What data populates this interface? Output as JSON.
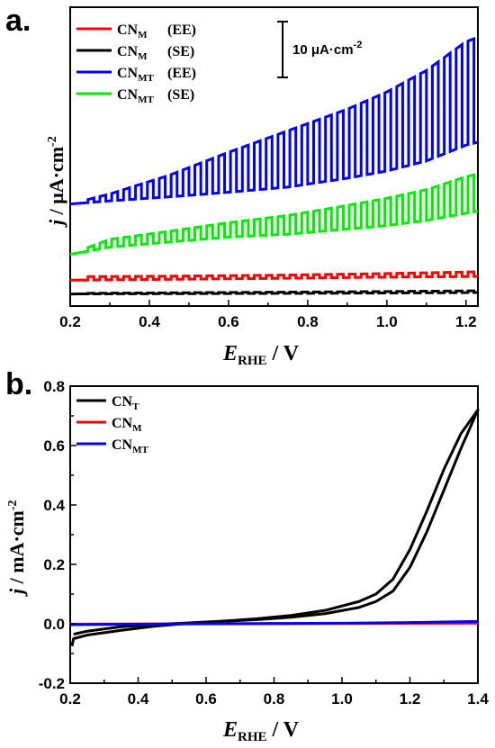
{
  "chart_data": [
    {
      "panel": "a.",
      "type": "line",
      "xlabel": "E",
      "xlabel_sub": "RHE",
      "xlabel_unit": " / V",
      "ylabel_j": "j",
      "ylabel_unit": " / μA·cm",
      "ylabel_exp": "-2",
      "x_ticks": [
        "0.2",
        "0.4",
        "0.6",
        "0.8",
        "1.0",
        "1.2"
      ],
      "xlim": [
        0.2,
        1.23
      ],
      "y_ticks_shown": false,
      "scale_bar": {
        "label": "10 μA·cm",
        "exp": "-2",
        "value": 10
      },
      "chopped_light": {
        "first_on": 0.245,
        "period": 0.03,
        "on_fraction": 0.5
      },
      "series": [
        {
          "name": "CN",
          "sub": "M",
          "tag": "(EE)",
          "color": "#ff0000",
          "x": [
            0.2,
            0.45,
            0.7,
            0.95,
            1.23
          ],
          "dark": [
            -3.0,
            -2.7,
            -2.4,
            -2.0,
            -1.7
          ],
          "photo": [
            -1.8,
            -1.6,
            -1.3,
            -0.8,
            -0.1
          ]
        },
        {
          "name": "CN",
          "sub": "M",
          "tag": "(SE)",
          "color": "#000000",
          "x": [
            0.2,
            0.45,
            0.7,
            0.95,
            1.23
          ],
          "dark": [
            -7.8,
            -7.7,
            -7.6,
            -7.5,
            -7.3
          ],
          "photo": [
            -7.6,
            -7.4,
            -7.2,
            -7.0,
            -6.7
          ]
        },
        {
          "name": "CN",
          "sub": "MT",
          "tag": "(EE)",
          "color": "#0000ff",
          "x": [
            0.2,
            0.3,
            0.45,
            0.6,
            0.75,
            0.9,
            1.0,
            1.1,
            1.2,
            1.23
          ],
          "dark": [
            23.5,
            24.6,
            26.0,
            27.6,
            29.4,
            32.5,
            35.0,
            38.5,
            44.0,
            45.0
          ],
          "photo": [
            23.5,
            27.0,
            33.5,
            41.5,
            49.0,
            56.5,
            62.5,
            70.0,
            80.0,
            81.5
          ]
        },
        {
          "name": "CN",
          "sub": "MT",
          "tag": "(SE)",
          "color": "#00ee00",
          "x": [
            0.2,
            0.3,
            0.45,
            0.6,
            0.75,
            0.9,
            1.0,
            1.1,
            1.2,
            1.23
          ],
          "dark": [
            6.0,
            8.5,
            10.3,
            12.0,
            13.0,
            14.8,
            16.0,
            17.8,
            20.3,
            21.0
          ],
          "photo": [
            6.0,
            11.2,
            14.0,
            17.0,
            19.5,
            23.0,
            25.5,
            28.5,
            33.0,
            34.0
          ]
        }
      ],
      "ylim_internal": [
        -12,
        92
      ]
    },
    {
      "panel": "b.",
      "type": "line",
      "xlabel": "E",
      "xlabel_sub": "RHE",
      "xlabel_unit": " / V",
      "ylabel_j": "j",
      "ylabel_unit": " / mA·cm",
      "ylabel_exp": "-2",
      "xlim": [
        0.2,
        1.4
      ],
      "ylim": [
        -0.2,
        0.8
      ],
      "x_ticks": [
        "0.2",
        "0.4",
        "0.6",
        "0.8",
        "1.0",
        "1.2",
        "1.4"
      ],
      "y_ticks": [
        "-0.2",
        "0.0",
        "0.2",
        "0.4",
        "0.6",
        "0.8"
      ],
      "series": [
        {
          "name": "CN",
          "sub": "T",
          "color": "#000000",
          "forward_x": [
            0.205,
            0.21,
            0.25,
            0.35,
            0.45,
            0.55,
            0.65,
            0.75,
            0.85,
            0.95,
            1.05,
            1.1,
            1.15,
            1.2,
            1.25,
            1.3,
            1.35,
            1.4
          ],
          "forward_y": [
            -0.075,
            -0.05,
            -0.038,
            -0.022,
            -0.008,
            0.002,
            0.008,
            0.014,
            0.022,
            0.034,
            0.055,
            0.075,
            0.11,
            0.19,
            0.31,
            0.45,
            0.59,
            0.72
          ],
          "reverse_x": [
            1.4,
            1.35,
            1.3,
            1.25,
            1.2,
            1.15,
            1.1,
            1.05,
            0.95,
            0.85,
            0.75,
            0.65,
            0.55,
            0.45,
            0.35,
            0.25,
            0.21
          ],
          "reverse_y": [
            0.72,
            0.64,
            0.52,
            0.38,
            0.25,
            0.15,
            0.1,
            0.075,
            0.045,
            0.028,
            0.017,
            0.009,
            0.003,
            -0.002,
            -0.01,
            -0.025,
            -0.035
          ]
        },
        {
          "name": "CN",
          "sub": "M",
          "color": "#ff0000",
          "x": [
            0.2,
            0.6,
            1.0,
            1.4
          ],
          "y": [
            -0.001,
            0.0,
            0.001,
            0.002
          ]
        },
        {
          "name": "CN",
          "sub": "MT",
          "color": "#0000ff",
          "x": [
            0.2,
            0.6,
            1.0,
            1.2,
            1.4
          ],
          "y": [
            -0.003,
            0.0,
            0.002,
            0.004,
            0.008
          ]
        }
      ]
    }
  ]
}
